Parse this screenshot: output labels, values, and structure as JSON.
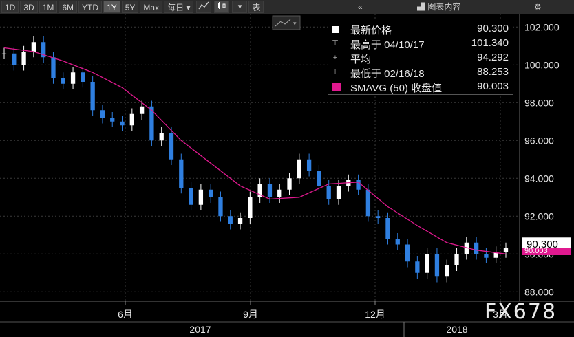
{
  "toolbar": {
    "range_buttons": [
      "1D",
      "3D",
      "1M",
      "6M",
      "YTD",
      "1Y",
      "5Y",
      "Max"
    ],
    "active_range": "1Y",
    "period_select": "每日",
    "table_label": "表",
    "chart_content_label": "图表内容"
  },
  "legend": {
    "rows": [
      {
        "icon": "square-swatch-icon",
        "label": "最新价格",
        "value": "90.300"
      },
      {
        "icon": "high-marker-icon",
        "label": "最高于 04/10/17",
        "value": "101.340"
      },
      {
        "icon": "average-marker-icon",
        "label": "平均",
        "value": "94.292"
      },
      {
        "icon": "low-marker-icon",
        "label": "最低于 02/16/18",
        "value": "88.253"
      },
      {
        "icon": "pink-swatch-icon",
        "label": "SMAVG (50) 收盘值",
        "value": "90.003"
      }
    ]
  },
  "price_tag": {
    "last": "90.300",
    "sma": "90.003"
  },
  "watermark": "FX678",
  "colors": {
    "background": "#000000",
    "candle_up": "#ffffff",
    "candle_down": "#2f7fe0",
    "sma": "#e0198f",
    "grid": "#3a3a3a"
  },
  "chart_data": {
    "type": "line",
    "title": "",
    "ylim": [
      87.5,
      102.7
    ],
    "y_ticks": [
      "88.000",
      "90.000",
      "92.000",
      "94.000",
      "96.000",
      "98.000",
      "100.000",
      "102.000"
    ],
    "x_tick_labels": [
      "6月",
      "9月",
      "12月",
      "3月"
    ],
    "year_labels": [
      "2017",
      "2018"
    ],
    "series": [
      {
        "name": "最新价格",
        "x": [
          0,
          1,
          2,
          3,
          4,
          5,
          6,
          7,
          8,
          9,
          10,
          11,
          12,
          13,
          14,
          15,
          16,
          17,
          18,
          19,
          20,
          21,
          22,
          23,
          24,
          25,
          26,
          27,
          28,
          29,
          30,
          31,
          32,
          33,
          34,
          35,
          36,
          37,
          38,
          39,
          40,
          41,
          42,
          43,
          44,
          45,
          46,
          47,
          48,
          49,
          50,
          51
        ],
        "values": [
          100.6,
          100.0,
          100.7,
          101.2,
          100.4,
          99.3,
          99.0,
          99.6,
          99.1,
          97.6,
          97.2,
          97.0,
          96.8,
          97.4,
          97.8,
          96.0,
          96.4,
          95.0,
          93.5,
          92.6,
          93.4,
          93.0,
          92.0,
          91.6,
          91.9,
          93.0,
          93.7,
          93.0,
          93.4,
          94.0,
          95.0,
          94.4,
          93.6,
          92.9,
          93.6,
          93.9,
          93.4,
          92.0,
          91.9,
          90.8,
          90.5,
          89.6,
          89.0,
          90.0,
          88.8,
          89.4,
          90.0,
          90.6,
          90.0,
          89.8,
          90.1,
          90.3
        ]
      },
      {
        "name": "SMAVG (50) 收盘值",
        "x": [
          0,
          3,
          6,
          9,
          12,
          15,
          18,
          21,
          24,
          27,
          30,
          33,
          36,
          39,
          42,
          45,
          48,
          51
        ],
        "values": [
          100.9,
          100.7,
          100.2,
          99.6,
          98.8,
          97.6,
          96.0,
          94.8,
          93.6,
          92.9,
          93.0,
          93.7,
          93.8,
          92.5,
          91.5,
          90.6,
          90.2,
          90.0
        ]
      }
    ],
    "high": {
      "date": "04/10/17",
      "value": 101.34
    },
    "low": {
      "date": "02/16/18",
      "value": 88.253
    },
    "average": 94.292,
    "grid": true,
    "legend_position": "top-right"
  }
}
